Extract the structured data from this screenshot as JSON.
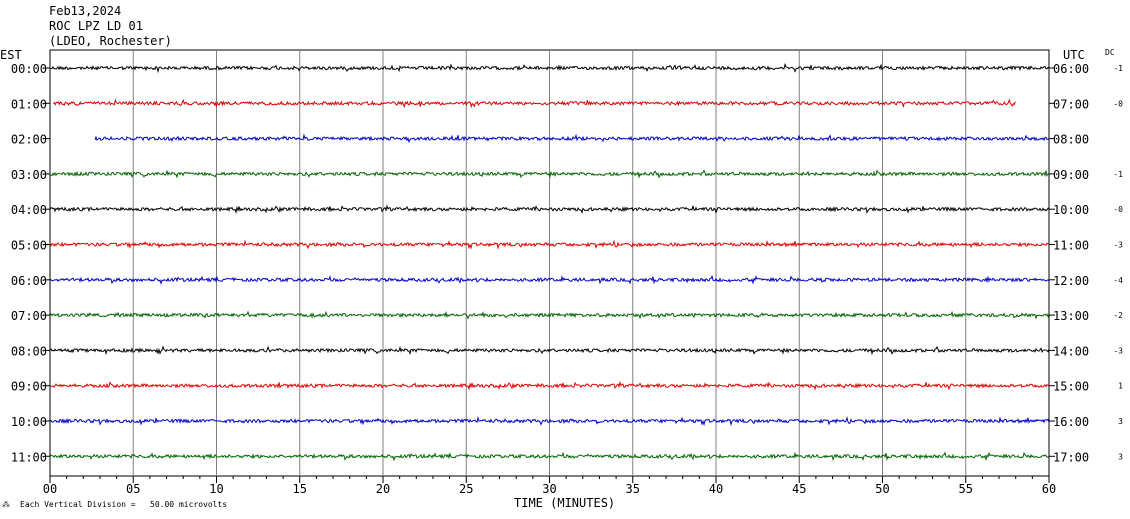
{
  "header": {
    "date": "Feb13,2024",
    "station": "ROC LPZ LD 01",
    "network": "(LDEO, Rochester)"
  },
  "labels": {
    "left_tz": "EST",
    "right_tz": "UTC",
    "dc": "DC",
    "xlabel": "TIME (MINUTES)",
    "footnote": "Each Vertical Division =   50.00 microvolts"
  },
  "colors": {
    "black": "#000000",
    "red": "#e00000",
    "blue": "#0000c8",
    "green": "#006400",
    "grid": "#808080"
  },
  "chart_data": {
    "type": "line",
    "title": "Feb13,2024 ROC LPZ LD 01 (LDEO, Rochester)",
    "xlabel": "TIME (MINUTES)",
    "xlim": [
      0,
      60
    ],
    "x_ticks": [
      "00",
      "05",
      "10",
      "15",
      "20",
      "25",
      "30",
      "35",
      "40",
      "45",
      "50",
      "55",
      "60"
    ],
    "grid": true,
    "scale_note": "Each Vertical Division = 50.00 microvolts",
    "rows": [
      {
        "est": "00:00",
        "utc": "06:00",
        "dc": "-1",
        "color": "black",
        "start_min": 0,
        "end_min": 60
      },
      {
        "est": "01:00",
        "utc": "07:00",
        "dc": "-0",
        "color": "red",
        "start_min": 0.2,
        "end_min": 58
      },
      {
        "est": "02:00",
        "utc": "08:00",
        "dc": "",
        "color": "blue",
        "start_min": 2.7,
        "end_min": 60
      },
      {
        "est": "03:00",
        "utc": "09:00",
        "dc": "-1",
        "color": "green",
        "start_min": 0,
        "end_min": 60
      },
      {
        "est": "04:00",
        "utc": "10:00",
        "dc": "-0",
        "color": "black",
        "start_min": 0,
        "end_min": 60
      },
      {
        "est": "05:00",
        "utc": "11:00",
        "dc": "-3",
        "color": "red",
        "start_min": 0,
        "end_min": 60
      },
      {
        "est": "06:00",
        "utc": "12:00",
        "dc": "-4",
        "color": "blue",
        "start_min": 0,
        "end_min": 60
      },
      {
        "est": "07:00",
        "utc": "13:00",
        "dc": "-2",
        "color": "green",
        "start_min": 0,
        "end_min": 60
      },
      {
        "est": "08:00",
        "utc": "14:00",
        "dc": "-3",
        "color": "black",
        "start_min": 0,
        "end_min": 60
      },
      {
        "est": "09:00",
        "utc": "15:00",
        "dc": "1",
        "color": "red",
        "start_min": 0,
        "end_min": 60
      },
      {
        "est": "10:00",
        "utc": "16:00",
        "dc": "3",
        "color": "blue",
        "start_min": 0,
        "end_min": 60
      },
      {
        "est": "11:00",
        "utc": "17:00",
        "dc": "3",
        "color": "green",
        "start_min": 0,
        "end_min": 60
      }
    ]
  }
}
